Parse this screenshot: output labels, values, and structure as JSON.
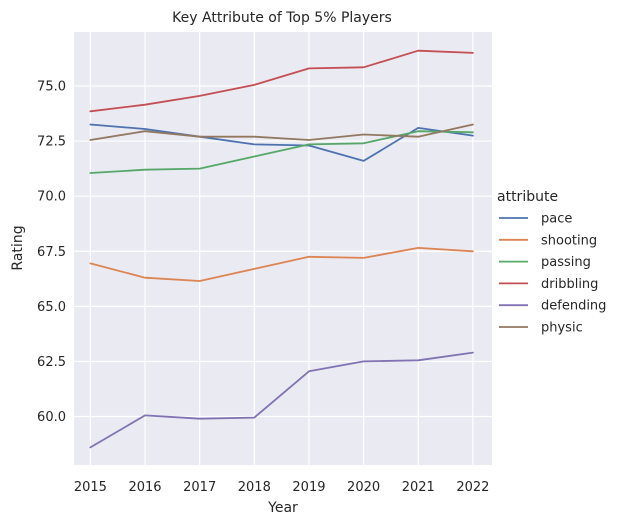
{
  "chart_data": {
    "type": "line",
    "title": "Key Attribute of Top 5% Players",
    "xlabel": "Year",
    "ylabel": "Rating",
    "x": [
      2015,
      2016,
      2017,
      2018,
      2019,
      2020,
      2021,
      2022
    ],
    "x_ticks": [
      "2015",
      "2016",
      "2017",
      "2018",
      "2019",
      "2020",
      "2021",
      "2022"
    ],
    "y_ticks": [
      "60.0",
      "62.5",
      "65.0",
      "67.5",
      "70.0",
      "72.5",
      "75.0"
    ],
    "xlim": [
      2014.7,
      2022.35
    ],
    "ylim": [
      57.8,
      77.45
    ],
    "grid": true,
    "legend": {
      "title": "attribute",
      "position": "right"
    },
    "series": [
      {
        "name": "pace",
        "color": "#4c72b0",
        "values": [
          73.25,
          73.05,
          72.7,
          72.35,
          72.3,
          71.6,
          73.1,
          72.75
        ]
      },
      {
        "name": "shooting",
        "color": "#dd8452",
        "values": [
          66.95,
          66.3,
          66.15,
          66.7,
          67.25,
          67.2,
          67.65,
          67.5
        ]
      },
      {
        "name": "passing",
        "color": "#55a868",
        "values": [
          71.05,
          71.2,
          71.25,
          71.8,
          72.35,
          72.4,
          72.95,
          72.9
        ]
      },
      {
        "name": "dribbling",
        "color": "#c44e52",
        "values": [
          73.85,
          74.15,
          74.55,
          75.05,
          75.8,
          75.85,
          76.6,
          76.5
        ]
      },
      {
        "name": "defending",
        "color": "#8172b3",
        "values": [
          58.6,
          60.05,
          59.9,
          59.95,
          62.05,
          62.5,
          62.55,
          62.9
        ]
      },
      {
        "name": "physic",
        "color": "#937860",
        "values": [
          72.55,
          72.95,
          72.7,
          72.7,
          72.55,
          72.8,
          72.7,
          73.25
        ]
      }
    ]
  }
}
